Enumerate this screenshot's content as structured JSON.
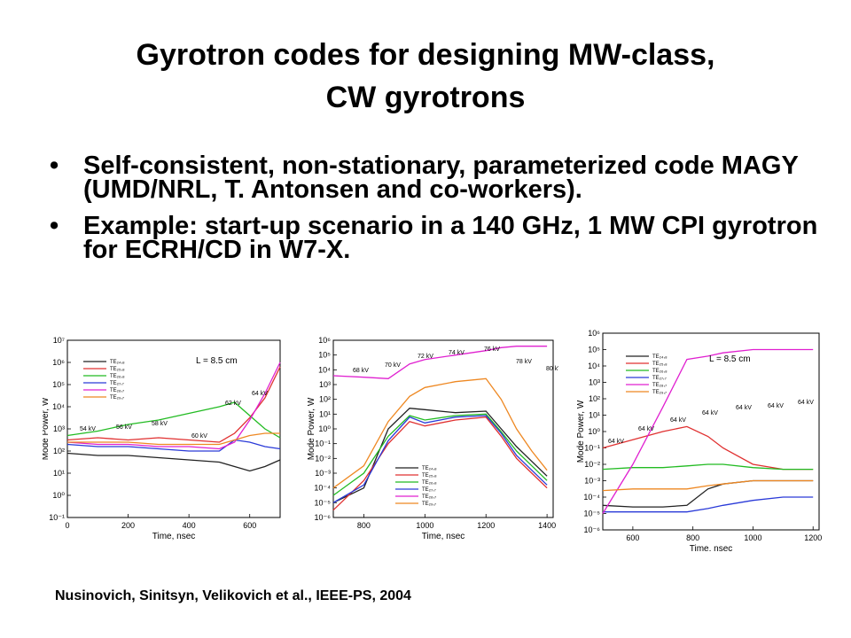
{
  "slide": {
    "title_line1": "Gyrotron codes for designing MW-class,",
    "title_line2": "CW gyrotrons",
    "bullets": [
      {
        "marker": "•",
        "text": "Self-consistent, non-stationary, parameterized code MAGY (UMD/NRL, T. Antonsen and co-workers)."
      },
      {
        "marker": "•",
        "text": "Example: start-up scenario in a 140 GHz, 1 MW CPI gyrotron for ECRH/CD in W7-X."
      }
    ],
    "citation": "Nusinovich, Sinitsyn, Velikovich et al., IEEE-PS, 2004"
  },
  "chart_data": [
    {
      "type": "line",
      "xlabel": "Time, nsec",
      "ylabel": "Mode Power, W",
      "xlim": [
        0,
        700
      ],
      "ylim_log10": [
        -1,
        7
      ],
      "xticks": [
        "0",
        "200",
        "400",
        "600"
      ],
      "yticks": [
        "10⁻¹",
        "10⁰",
        "10¹",
        "10²",
        "10³",
        "10⁴",
        "10⁵",
        "10⁶",
        "10⁷"
      ],
      "legend": [
        "TE₂₄,₈",
        "TE₂₅,₈",
        "TE₂₆,₈",
        "TE₂₇,₇",
        "TE₂₈,₇",
        "TE₂₉,₇"
      ],
      "label": "L = 8.5 cm",
      "annotations": [
        "54 kV",
        "56 kV",
        "58 kV",
        "60 kV",
        "62 kV",
        "64 kV",
        "66 kV"
      ],
      "series": [
        {
          "name": "TE₂₄,₈",
          "color": "#222222",
          "x": [
            0,
            100,
            200,
            300,
            400,
            500,
            550,
            600,
            650,
            700
          ],
          "y": [
            1.9,
            1.8,
            1.8,
            1.7,
            1.6,
            1.5,
            1.3,
            1.1,
            1.3,
            1.6
          ]
        },
        {
          "name": "TE₂₅,₈",
          "color": "#e03030",
          "x": [
            0,
            100,
            200,
            300,
            400,
            500,
            550,
            600,
            650,
            700
          ],
          "y": [
            2.5,
            2.6,
            2.5,
            2.6,
            2.5,
            2.4,
            2.8,
            3.5,
            4.4,
            5.8
          ]
        },
        {
          "name": "TE₂₆,₈",
          "color": "#22bb22",
          "x": [
            0,
            100,
            200,
            300,
            400,
            500,
            550,
            600,
            650,
            700
          ],
          "y": [
            2.7,
            2.9,
            3.2,
            3.4,
            3.7,
            4.0,
            4.2,
            3.6,
            3.0,
            2.6
          ]
        },
        {
          "name": "TE₂₇,₇",
          "color": "#2a3ad8",
          "x": [
            0,
            100,
            200,
            300,
            400,
            500,
            550,
            600,
            650,
            700
          ],
          "y": [
            2.3,
            2.2,
            2.2,
            2.1,
            2.0,
            2.0,
            2.5,
            2.4,
            2.2,
            2.1
          ]
        },
        {
          "name": "TE₂₈,₇",
          "color": "#e020d0",
          "x": [
            0,
            100,
            200,
            300,
            400,
            500,
            550,
            600,
            650,
            700
          ],
          "y": [
            2.4,
            2.3,
            2.3,
            2.2,
            2.2,
            2.1,
            2.4,
            3.4,
            4.6,
            6.0
          ]
        },
        {
          "name": "TE₂₉,₇",
          "color": "#ee8822",
          "x": [
            0,
            100,
            200,
            300,
            400,
            500,
            550,
            600,
            650,
            700
          ],
          "y": [
            2.4,
            2.4,
            2.4,
            2.3,
            2.3,
            2.3,
            2.5,
            2.7,
            2.8,
            2.8
          ]
        }
      ]
    },
    {
      "type": "line",
      "xlabel": "Time, nsec",
      "ylabel": "Mode Power, W",
      "xlim": [
        700,
        1420
      ],
      "ylim_log10": [
        -6,
        6
      ],
      "xticks": [
        "800",
        "1000",
        "1200",
        "1400"
      ],
      "yticks": [
        "10⁻⁶",
        "10⁻⁵",
        "10⁻⁴",
        "10⁻³",
        "10⁻²",
        "10⁻¹",
        "10⁰",
        "10¹",
        "10²",
        "10³",
        "10⁴",
        "10⁵",
        "10⁶"
      ],
      "legend": [
        "TE₂₄,₈",
        "TE₂₅,₈",
        "TE₂₆,₈",
        "TE₂₇,₇",
        "TE₂₈,₇",
        "TE₂₉,₇"
      ],
      "annotations": [
        "68 kV",
        "70 kV",
        "72 kV",
        "74 kV",
        "76 kV",
        "78 kV",
        "80 kV"
      ],
      "series": [
        {
          "name": "TE₂₄,₈",
          "color": "#222222",
          "x": [
            700,
            800,
            880,
            950,
            1000,
            1100,
            1200,
            1250,
            1300,
            1350,
            1400
          ],
          "y": [
            -5,
            -4,
            0,
            1.4,
            1.3,
            1.1,
            1.2,
            0,
            -1.2,
            -2.2,
            -3.2
          ]
        },
        {
          "name": "TE₂₅,₈",
          "color": "#e03030",
          "x": [
            700,
            800,
            880,
            950,
            1000,
            1100,
            1200,
            1250,
            1300,
            1350,
            1400
          ],
          "y": [
            -5.5,
            -3.5,
            -1,
            0.5,
            0.2,
            0.6,
            0.8,
            -0.5,
            -2,
            -3,
            -4
          ]
        },
        {
          "name": "TE₂₆,₈",
          "color": "#22bb22",
          "x": [
            700,
            800,
            880,
            950,
            1000,
            1100,
            1200,
            1250,
            1300,
            1350,
            1400
          ],
          "y": [
            -4.5,
            -3,
            -0.5,
            0.9,
            0.6,
            0.9,
            1.0,
            -0.2,
            -1.5,
            -2.5,
            -3.5
          ]
        },
        {
          "name": "TE₂₇,₇",
          "color": "#2a3ad8",
          "x": [
            700,
            800,
            880,
            950,
            1000,
            1100,
            1200,
            1250,
            1300,
            1350,
            1400
          ],
          "y": [
            -5,
            -3.8,
            -0.8,
            0.8,
            0.4,
            0.8,
            0.9,
            -0.3,
            -1.8,
            -2.8,
            -3.8
          ]
        },
        {
          "name": "TE₂₈,₇",
          "color": "#e020d0",
          "x": [
            700,
            800,
            880,
            950,
            1000,
            1100,
            1200,
            1250,
            1300,
            1350,
            1400
          ],
          "y": [
            3.6,
            3.5,
            3.4,
            4.4,
            4.7,
            5.0,
            5.3,
            5.5,
            5.6,
            5.6,
            5.6
          ]
        },
        {
          "name": "TE₂₉,₇",
          "color": "#ee8822",
          "x": [
            700,
            800,
            880,
            950,
            1000,
            1100,
            1200,
            1250,
            1300,
            1350,
            1400
          ],
          "y": [
            -4,
            -2.5,
            0.5,
            2.2,
            2.8,
            3.2,
            3.4,
            2.0,
            0,
            -1.5,
            -2.8
          ]
        }
      ]
    },
    {
      "type": "line",
      "xlabel": "Time, nsec",
      "ylabel": "Mode Power, W",
      "xlim": [
        500,
        1220
      ],
      "ylim_log10": [
        -6,
        6
      ],
      "xticks": [
        "600",
        "800",
        "1000",
        "1200"
      ],
      "yticks": [
        "10⁻⁶",
        "10⁻⁵",
        "10⁻⁴",
        "10⁻³",
        "10⁻²",
        "10⁻¹",
        "10⁰",
        "10¹",
        "10²",
        "10³",
        "10⁴",
        "10⁵",
        "10⁶"
      ],
      "legend": [
        "TE₂₄,₈",
        "TE₂₅,₈",
        "TE₂₆,₈",
        "TE₂₇,₇",
        "TE₂₈,₇",
        "TE₂₉,₇"
      ],
      "label": "L = 8.5 cm",
      "annotations": [
        "64 kV",
        "64 kV",
        "64 kV",
        "64 kV",
        "64 kV",
        "64 kV",
        "64 kV"
      ],
      "series": [
        {
          "name": "TE₂₄,₈",
          "color": "#222222",
          "x": [
            500,
            600,
            700,
            780,
            850,
            900,
            1000,
            1100,
            1200
          ],
          "y": [
            -4.5,
            -4.6,
            -4.6,
            -4.5,
            -3.5,
            -3.2,
            -3.0,
            -3.0,
            -3.0
          ]
        },
        {
          "name": "TE₂₅,₈",
          "color": "#e03030",
          "x": [
            500,
            600,
            700,
            780,
            850,
            900,
            1000,
            1100,
            1200
          ],
          "y": [
            -1,
            -0.5,
            0,
            0.3,
            -0.3,
            -1,
            -2,
            -2.3,
            -2.3
          ]
        },
        {
          "name": "TE₂₆,₈",
          "color": "#22bb22",
          "x": [
            500,
            600,
            700,
            780,
            850,
            900,
            1000,
            1100,
            1200
          ],
          "y": [
            -2.3,
            -2.2,
            -2.2,
            -2.1,
            -2.0,
            -2.0,
            -2.2,
            -2.3,
            -2.3
          ]
        },
        {
          "name": "TE₂₇,₇",
          "color": "#2a3ad8",
          "x": [
            500,
            600,
            700,
            780,
            850,
            900,
            1000,
            1100,
            1200
          ],
          "y": [
            -4.9,
            -4.9,
            -4.9,
            -4.9,
            -4.7,
            -4.5,
            -4.2,
            -4.0,
            -4.0
          ]
        },
        {
          "name": "TE₂₈,₇",
          "color": "#e020d0",
          "x": [
            500,
            600,
            700,
            780,
            850,
            900,
            1000,
            1100,
            1200
          ],
          "y": [
            -5,
            -2,
            1.5,
            4.4,
            4.6,
            4.8,
            5.0,
            5.0,
            5.0
          ]
        },
        {
          "name": "TE₂₉,₇",
          "color": "#ee8822",
          "x": [
            500,
            600,
            700,
            780,
            850,
            900,
            1000,
            1100,
            1200
          ],
          "y": [
            -3.6,
            -3.5,
            -3.5,
            -3.5,
            -3.3,
            -3.2,
            -3.0,
            -3.0,
            -3.0
          ]
        }
      ]
    }
  ]
}
